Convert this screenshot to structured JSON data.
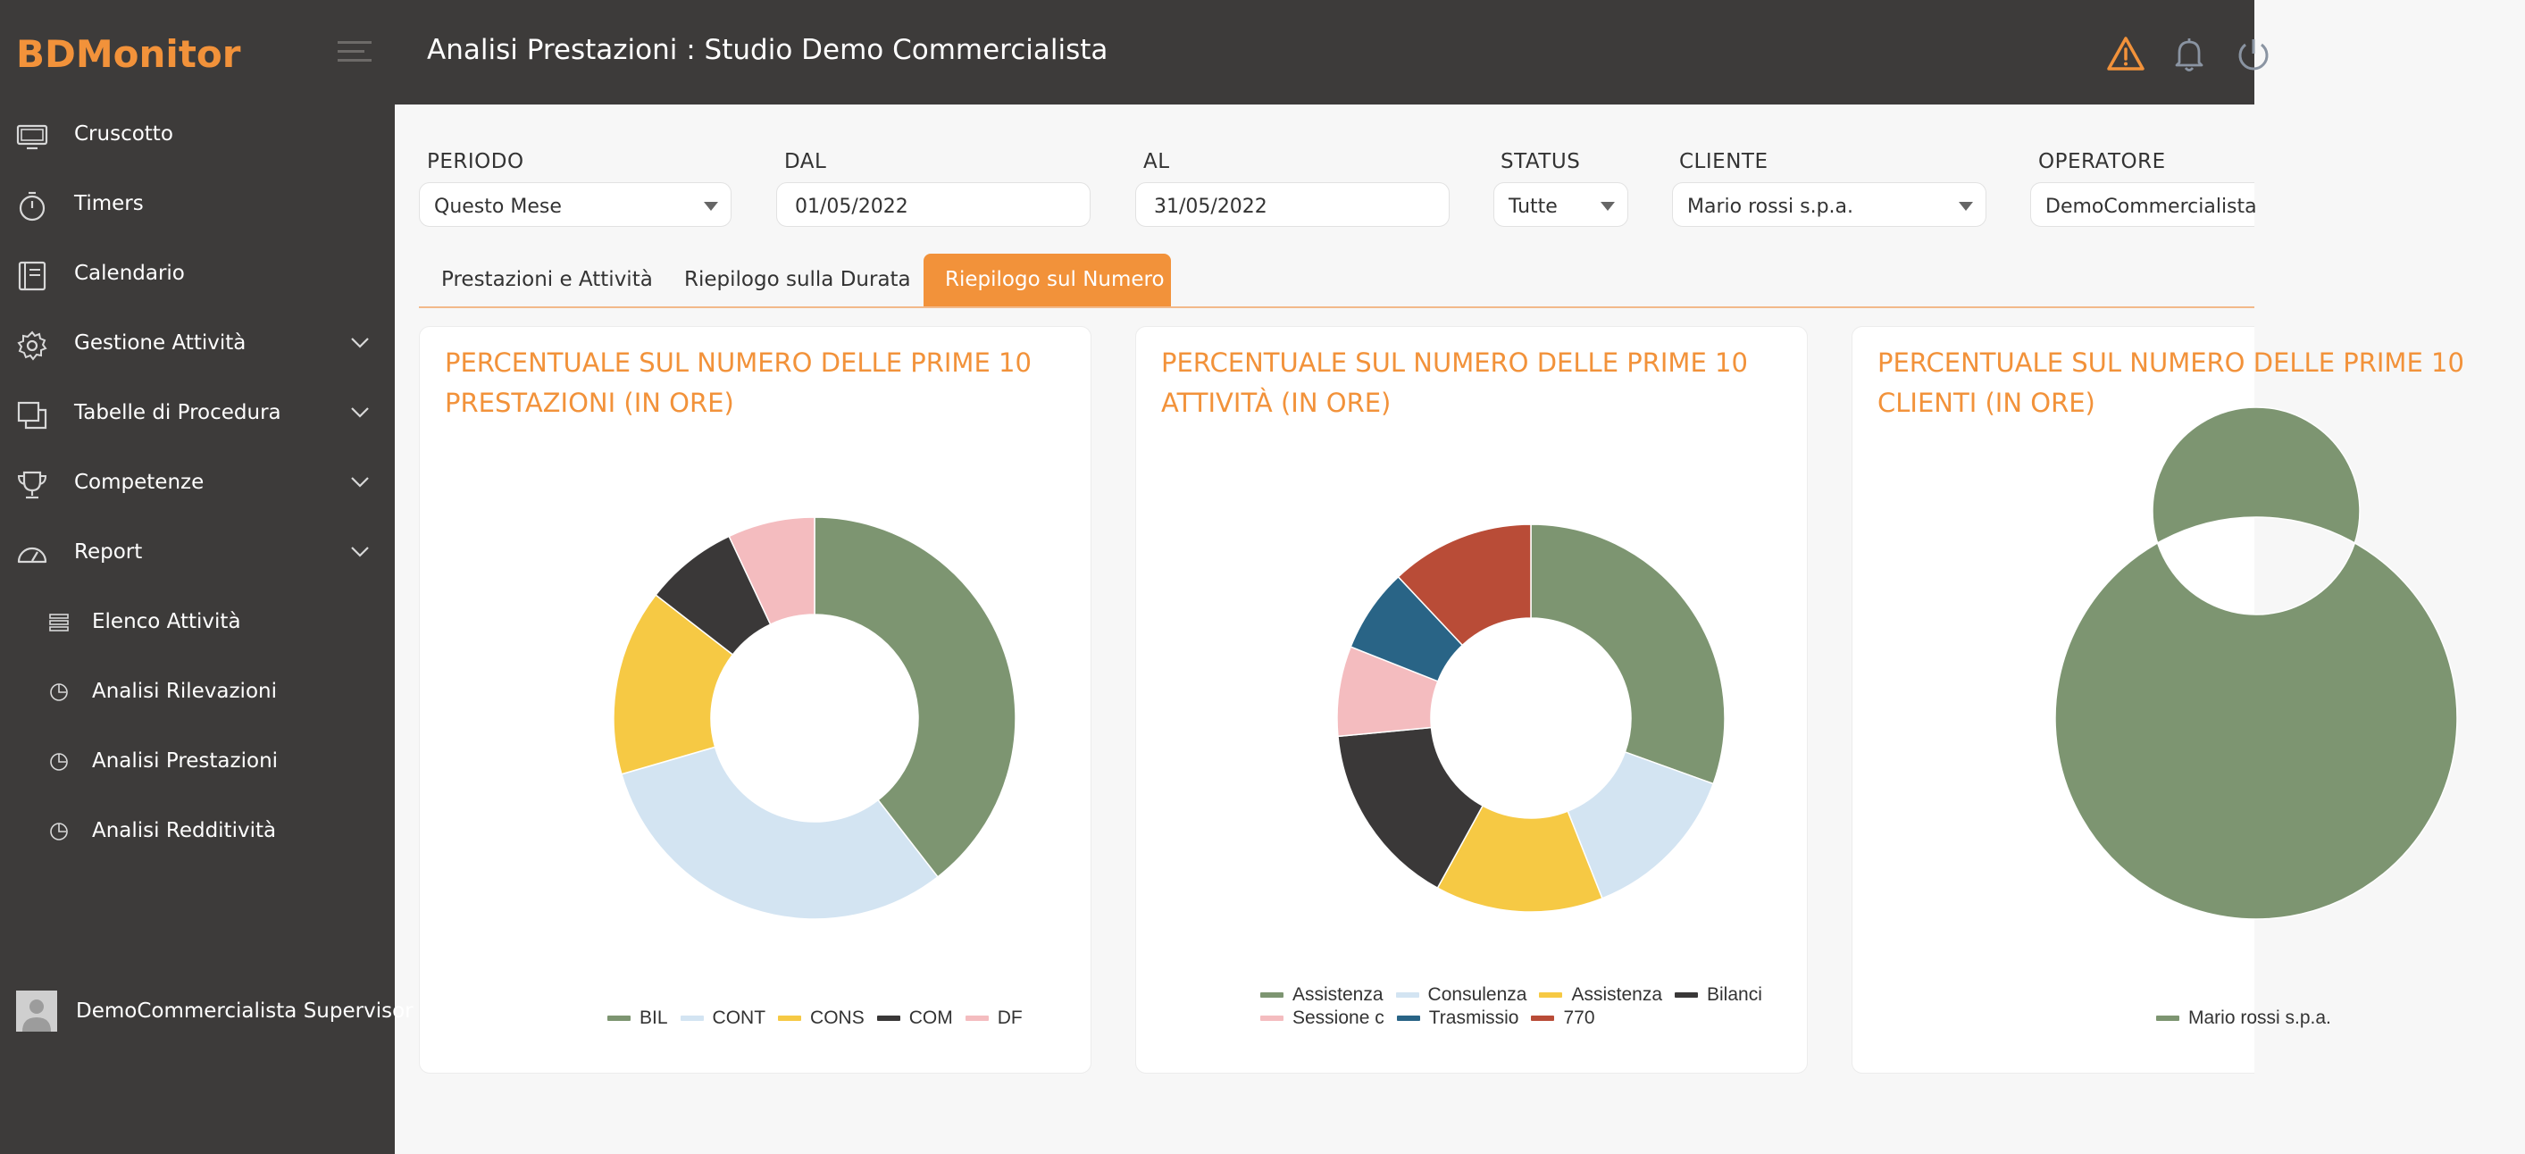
{
  "app": {
    "logo_text": "BDMonitor",
    "page_title": "Analisi Prestazioni : Studio Demo Commercialista"
  },
  "top_icons": [
    "warning-icon",
    "bell-icon",
    "power-icon"
  ],
  "colors": {
    "accent": "#f2923a",
    "dark": "#3d3b3a"
  },
  "sidebar": {
    "items": [
      {
        "label": "Cruscotto",
        "icon": "monitor-icon"
      },
      {
        "label": "Timers",
        "icon": "stopwatch-icon"
      },
      {
        "label": "Calendario",
        "icon": "calendar-icon"
      },
      {
        "label": "Gestione Attività",
        "icon": "gear-icon"
      },
      {
        "label": "Tabelle di Procedura",
        "icon": "copy-icon"
      },
      {
        "label": "Competenze",
        "icon": "trophy-icon"
      },
      {
        "label": "Report",
        "icon": "gauge-icon"
      }
    ],
    "subitems": [
      {
        "label": "Elenco Attività",
        "icon": "list-icon"
      },
      {
        "label": "Analisi Rilevazioni",
        "icon": "pie-icon"
      },
      {
        "label": "Analisi Prestazioni",
        "icon": "pie-icon"
      },
      {
        "label": "Analisi Redditività",
        "icon": "pie-icon"
      }
    ],
    "user": "DemoCommercialista Supervisor"
  },
  "filters": {
    "periodo": {
      "label": "PERIODO",
      "value": "Questo Mese"
    },
    "dal": {
      "label": "DAL",
      "value": "01/05/2022"
    },
    "al": {
      "label": "AL",
      "value": "31/05/2022"
    },
    "status": {
      "label": "STATUS",
      "value": "Tutte"
    },
    "cliente": {
      "label": "CLIENTE",
      "value": "Mario rossi s.p.a."
    },
    "operatore": {
      "label": "OPERATORE",
      "value": "DemoCommercialista"
    }
  },
  "tabs": [
    {
      "label": "Prestazioni e Attività",
      "active": false
    },
    {
      "label": "Riepilogo sulla Durata",
      "active": false
    },
    {
      "label": "Riepilogo sul Numero",
      "active": true
    }
  ],
  "chart_data": [
    {
      "type": "pie",
      "title": "PERCENTUALE SUL NUMERO DELLE PRIME 10 PRESTAZIONI (IN ORE)",
      "categories": [
        "BIL",
        "CONT",
        "CONS",
        "COM",
        "DF"
      ],
      "values": [
        39.5,
        31,
        15,
        7.5,
        7
      ],
      "colors": [
        "#7d9571",
        "#d3e4f2",
        "#f6c944",
        "#3a3838",
        "#f4bcbf"
      ],
      "legend": "bottom"
    },
    {
      "type": "pie",
      "title": "PERCENTUALE SUL NUMERO DELLE PRIME 10 ATTIVITÀ (IN ORE)",
      "categories": [
        "Assistenza",
        "Consulenza",
        "Assistenza",
        "Bilanci",
        "Sessione c",
        "Trasmissio",
        "770"
      ],
      "values": [
        30.5,
        13.5,
        14,
        15.5,
        7.5,
        7,
        12
      ],
      "colors": [
        "#7d9571",
        "#d3e4f2",
        "#f6c944",
        "#3a3838",
        "#f4bcbf",
        "#296486",
        "#b94c37"
      ],
      "legend": "bottom"
    },
    {
      "type": "pie",
      "title": "PERCENTUALE SUL NUMERO DELLE PRIME 10 CLIENTI (IN ORE)",
      "categories": [
        "Mario rossi s.p.a."
      ],
      "values": [
        100
      ],
      "colors": [
        "#7d9571"
      ],
      "legend": "bottom"
    }
  ]
}
